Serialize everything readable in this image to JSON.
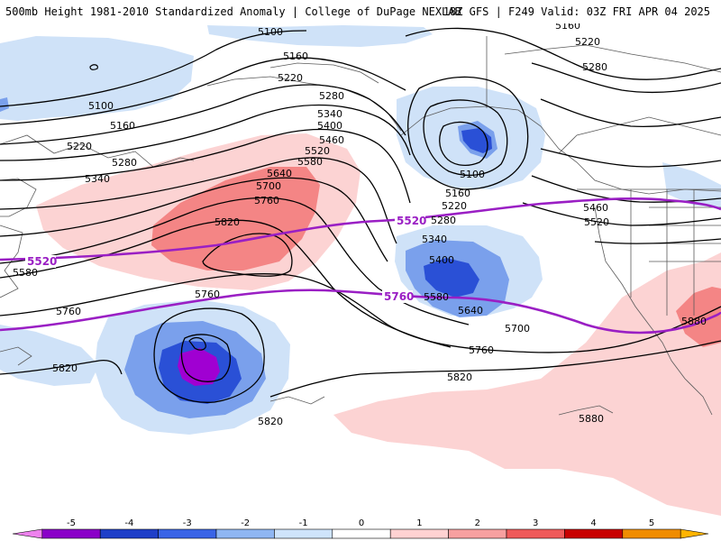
{
  "header": {
    "title_left": "500mb Height 1981-2010 Standardized Anomaly | College of DuPage NEXLAB",
    "title_right": "18Z GFS | F249 Valid: 03Z FRI APR 04 2025"
  },
  "contour_labels": [
    "5100",
    "5160",
    "5220",
    "5280",
    "5340",
    "5400",
    "5460",
    "5520",
    "5580",
    "5640",
    "5700",
    "5760",
    "5820",
    "5880"
  ],
  "colorbar": {
    "ticks": [
      "-5",
      "-4",
      "-3",
      "-2",
      "-1",
      "0",
      "1",
      "2",
      "3",
      "4",
      "5"
    ],
    "colors": [
      "#ee82ee",
      "#8a00c8",
      "#1f3fc8",
      "#3a64e6",
      "#8fb6f2",
      "#cfe4fb",
      "#ffffff",
      "#ffd2d2",
      "#f7a0a0",
      "#ef5a5a",
      "#c80000",
      "#f08c00",
      "#ffb400"
    ]
  },
  "colors": {
    "highlight_contour": "#9a1fc4",
    "contour": "#000000",
    "geography": "#5a5a5a"
  }
}
